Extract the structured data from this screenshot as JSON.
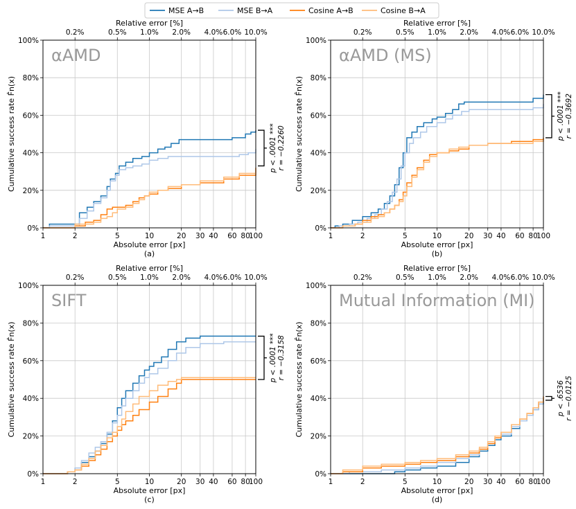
{
  "legend": [
    {
      "label": "MSE A→B",
      "color": "#1f77b4"
    },
    {
      "label": "MSE B→A",
      "color": "#aec7e8"
    },
    {
      "label": "Cosine A→B",
      "color": "#ff7f0e"
    },
    {
      "label": "Cosine B→A",
      "color": "#ffbb78"
    }
  ],
  "chart_data": [
    {
      "type": "line",
      "panel_label": "(a)",
      "title": "αAMD",
      "xlabel": "Absolute error [px]",
      "ylabel": "Cumulative success rate F̂n(x)",
      "top_xlabel": "Relative error [%]",
      "xscale": "log",
      "xlim": [
        1,
        100
      ],
      "ylim": [
        0,
        100
      ],
      "x_ticks": [
        "1",
        "2",
        "5",
        "10",
        "20",
        "30",
        "40",
        "60",
        "80",
        "100"
      ],
      "top_ticks": [
        "0.2%",
        "0.5%",
        "1.0%",
        "2.0%",
        "4.0%",
        "6.0%",
        "10.0%"
      ],
      "y_ticks": [
        "0%",
        "20%",
        "40%",
        "60%",
        "80%",
        "100%"
      ],
      "stat_p": "p < .0001 ***",
      "stat_r": "r = −0.2260",
      "bracket": [
        33,
        52
      ],
      "series": [
        {
          "name": "MSE A→B",
          "x": [
            1,
            1.15,
            1.9,
            2.2,
            2.6,
            3,
            3.5,
            4,
            4.3,
            4.8,
            5.2,
            6,
            7,
            8.5,
            10,
            12,
            14,
            16,
            19,
            25,
            40,
            60,
            80,
            90,
            100
          ],
          "y": [
            0,
            2,
            2,
            8,
            11,
            14,
            17,
            22,
            26,
            29,
            33,
            35,
            37,
            38,
            40,
            42,
            43,
            45,
            47,
            47,
            47,
            48,
            50,
            51,
            52
          ]
        },
        {
          "name": "MSE B→A",
          "x": [
            1,
            1.15,
            1.9,
            2.2,
            2.6,
            3,
            3.5,
            4,
            4.3,
            4.8,
            5.2,
            6,
            7,
            8.5,
            10,
            12,
            15,
            18,
            25,
            40,
            70,
            85,
            100
          ],
          "y": [
            0,
            1,
            1,
            5,
            9,
            13,
            16,
            20,
            25,
            28,
            31,
            32,
            33,
            34,
            36,
            37,
            38,
            38,
            38,
            38,
            39,
            40,
            42
          ]
        },
        {
          "name": "Cosine A→B",
          "x": [
            1,
            1.8,
            2,
            2.5,
            3,
            3.5,
            4,
            4.5,
            5,
            6,
            7,
            8,
            9,
            10,
            12,
            15,
            20,
            30,
            50,
            70,
            100
          ],
          "y": [
            0,
            0,
            1,
            3,
            4,
            7,
            10,
            11,
            11,
            12,
            14,
            16,
            17,
            18,
            20,
            21,
            23,
            24,
            26,
            28,
            32
          ]
        },
        {
          "name": "Cosine B→A",
          "x": [
            1,
            1.8,
            2,
            2.5,
            3,
            3.5,
            4,
            4.5,
            5,
            6,
            7,
            8,
            9,
            10,
            12,
            15,
            20,
            30,
            50,
            70,
            100
          ],
          "y": [
            0,
            0,
            2,
            2,
            3,
            5,
            6,
            8,
            10,
            11,
            13,
            15,
            17,
            19,
            20,
            22,
            23,
            25,
            27,
            29,
            31
          ]
        }
      ]
    },
    {
      "type": "line",
      "panel_label": "(b)",
      "title": "αAMD (MS)",
      "xlabel": "Absolute error [px]",
      "ylabel": "Cumulative success rate F̂n(x)",
      "top_xlabel": "Relative error [%]",
      "xscale": "log",
      "xlim": [
        1,
        100
      ],
      "ylim": [
        0,
        100
      ],
      "x_ticks": [
        "1",
        "2",
        "5",
        "10",
        "20",
        "30",
        "40",
        "60",
        "80",
        "100"
      ],
      "top_ticks": [
        "0.2%",
        "0.5%",
        "1.0%",
        "2.0%",
        "4.0%",
        "6.0%",
        "10.0%"
      ],
      "y_ticks": [
        "0%",
        "20%",
        "40%",
        "60%",
        "80%",
        "100%"
      ],
      "stat_p": "p < .0001 ***",
      "stat_r": "r = −0.3692",
      "bracket": [
        48,
        71
      ],
      "series": [
        {
          "name": "MSE A→B",
          "x": [
            1,
            1.1,
            1.3,
            1.6,
            2,
            2.4,
            2.8,
            3.2,
            3.6,
            4,
            4.4,
            4.8,
            5.2,
            5.8,
            6.5,
            7.5,
            9,
            10,
            12,
            14,
            16,
            18,
            25,
            40,
            80,
            100
          ],
          "y": [
            0,
            1,
            2,
            4,
            6,
            8,
            10,
            13,
            17,
            23,
            32,
            40,
            48,
            51,
            54,
            56,
            58,
            59,
            61,
            63,
            66,
            67,
            67,
            67,
            69,
            71
          ]
        },
        {
          "name": "MSE B→A",
          "x": [
            1,
            1.2,
            1.5,
            1.8,
            2.2,
            2.6,
            3,
            3.4,
            3.8,
            4.2,
            4.6,
            5,
            5.5,
            6,
            7,
            8,
            10,
            12,
            14,
            17,
            20,
            40,
            80,
            100
          ],
          "y": [
            0,
            1,
            2,
            3,
            5,
            7,
            10,
            14,
            19,
            26,
            33,
            40,
            45,
            48,
            51,
            54,
            56,
            58,
            60,
            62,
            63,
            63,
            64,
            66
          ]
        },
        {
          "name": "Cosine A→B",
          "x": [
            1,
            1.3,
            1.7,
            2,
            2.4,
            2.8,
            3.2,
            3.6,
            4,
            4.4,
            4.8,
            5.2,
            5.8,
            6.5,
            7.5,
            8.5,
            10,
            13,
            16,
            20,
            30,
            50,
            80,
            100
          ],
          "y": [
            0,
            1,
            2,
            4,
            6,
            7,
            8,
            10,
            12,
            15,
            19,
            24,
            28,
            32,
            36,
            39,
            40,
            41,
            42,
            44,
            45,
            46,
            47,
            48
          ]
        },
        {
          "name": "Cosine B→A",
          "x": [
            1,
            1.3,
            1.7,
            2,
            2.4,
            2.8,
            3.2,
            3.6,
            4,
            4.4,
            4.8,
            5.2,
            5.8,
            6.5,
            7.5,
            8.5,
            10,
            13,
            16,
            20,
            30,
            50,
            80,
            100
          ],
          "y": [
            0,
            1,
            2,
            3,
            5,
            6,
            8,
            10,
            12,
            14,
            17,
            22,
            27,
            31,
            35,
            38,
            40,
            42,
            43,
            44,
            45,
            45,
            46,
            47
          ]
        }
      ]
    },
    {
      "type": "line",
      "panel_label": "(c)",
      "title": "SIFT",
      "xlabel": "Absolute error [px]",
      "ylabel": "Cumulative success rate F̂n(x)",
      "top_xlabel": "Relative error [%]",
      "xscale": "log",
      "xlim": [
        1,
        100
      ],
      "ylim": [
        0,
        100
      ],
      "x_ticks": [
        "1",
        "2",
        "5",
        "10",
        "20",
        "30",
        "40",
        "60",
        "80",
        "100"
      ],
      "top_ticks": [
        "0.2%",
        "0.5%",
        "1.0%",
        "2.0%",
        "4.0%",
        "6.0%",
        "10.0%"
      ],
      "y_ticks": [
        "0%",
        "20%",
        "40%",
        "60%",
        "80%",
        "100%"
      ],
      "stat_p": "p < .0001 ***",
      "stat_r": "r = −0.3158",
      "bracket": [
        50,
        73
      ],
      "series": [
        {
          "name": "MSE A→B",
          "x": [
            1,
            1.7,
            2,
            2.3,
            2.7,
            3.1,
            3.5,
            4,
            4.5,
            5,
            5.5,
            6,
            7,
            8,
            9,
            10,
            11,
            13,
            15,
            18,
            22,
            30,
            50,
            100
          ],
          "y": [
            0,
            1,
            3,
            6,
            9,
            12,
            16,
            21,
            28,
            35,
            40,
            44,
            48,
            52,
            55,
            57,
            59,
            62,
            66,
            70,
            72,
            73,
            73,
            73
          ]
        },
        {
          "name": "MSE B→A",
          "x": [
            1,
            1.7,
            2,
            2.3,
            2.7,
            3.1,
            3.5,
            4,
            4.5,
            5,
            5.5,
            6,
            7,
            8,
            9,
            10,
            12,
            15,
            18,
            22,
            30,
            50,
            100
          ],
          "y": [
            0,
            1,
            3,
            7,
            11,
            14,
            17,
            22,
            27,
            31,
            36,
            40,
            44,
            48,
            51,
            53,
            56,
            60,
            64,
            67,
            69,
            70,
            70
          ]
        },
        {
          "name": "Cosine A→B",
          "x": [
            1,
            1.7,
            2,
            2.3,
            2.7,
            3.1,
            3.5,
            4,
            4.5,
            5,
            5.5,
            6,
            7,
            8,
            10,
            12,
            15,
            18,
            20,
            30,
            50,
            100
          ],
          "y": [
            0,
            1,
            2,
            4,
            7,
            10,
            13,
            17,
            20,
            23,
            26,
            28,
            31,
            34,
            38,
            41,
            45,
            48,
            50,
            50,
            50,
            50
          ]
        },
        {
          "name": "Cosine B→A",
          "x": [
            1,
            1.7,
            2,
            2.3,
            2.7,
            3.1,
            3.5,
            4,
            4.5,
            5,
            5.5,
            6,
            7,
            8,
            10,
            12,
            15,
            18,
            20,
            30,
            50,
            100
          ],
          "y": [
            0,
            1,
            2,
            5,
            8,
            12,
            15,
            19,
            22,
            25,
            29,
            33,
            37,
            41,
            44,
            47,
            49,
            50,
            51,
            51,
            51,
            51
          ]
        }
      ]
    },
    {
      "type": "line",
      "panel_label": "(d)",
      "title": "Mutual Information (MI)",
      "xlabel": "Absolute error [px]",
      "ylabel": "Cumulative success rate F̂n(x)",
      "top_xlabel": "Relative error [%]",
      "xscale": "log",
      "xlim": [
        1,
        100
      ],
      "ylim": [
        0,
        100
      ],
      "x_ticks": [
        "1",
        "2",
        "5",
        "10",
        "20",
        "30",
        "40",
        "60",
        "80",
        "100"
      ],
      "top_ticks": [
        "0.2%",
        "0.5%",
        "1.0%",
        "2.0%",
        "4.0%",
        "6.0%",
        "10.0%"
      ],
      "y_ticks": [
        "0%",
        "20%",
        "40%",
        "60%",
        "80%",
        "100%"
      ],
      "stat_p": "p < .6536",
      "stat_r": "r = −0.0125",
      "bracket": [
        39,
        41
      ],
      "series": [
        {
          "name": "MSE A→B",
          "x": [
            1,
            2,
            3,
            4,
            5,
            7,
            10,
            15,
            20,
            25,
            30,
            35,
            40,
            50,
            60,
            70,
            80,
            90,
            100
          ],
          "y": [
            0,
            0,
            0,
            1,
            2,
            3,
            4,
            6,
            9,
            12,
            15,
            18,
            20,
            24,
            28,
            31,
            34,
            37,
            40
          ]
        },
        {
          "name": "MSE B→A",
          "x": [
            1,
            1.5,
            2,
            3,
            5,
            7,
            10,
            15,
            20,
            25,
            30,
            35,
            40,
            50,
            60,
            70,
            80,
            90,
            100
          ],
          "y": [
            0,
            1,
            1,
            2,
            3,
            4,
            6,
            8,
            10,
            13,
            16,
            19,
            21,
            25,
            28,
            31,
            34,
            37,
            40
          ]
        },
        {
          "name": "Cosine A→B",
          "x": [
            1,
            1.3,
            2,
            3,
            5,
            7,
            10,
            15,
            20,
            25,
            30,
            35,
            40,
            50,
            60,
            70,
            80,
            90,
            100
          ],
          "y": [
            0,
            1,
            3,
            4,
            5,
            6,
            7,
            9,
            11,
            13,
            16,
            19,
            22,
            26,
            29,
            32,
            35,
            38,
            41
          ]
        },
        {
          "name": "Cosine B→A",
          "x": [
            1,
            1.3,
            2,
            3,
            5,
            7,
            10,
            15,
            20,
            25,
            30,
            35,
            40,
            50,
            60,
            70,
            80,
            90,
            100
          ],
          "y": [
            0,
            2,
            4,
            5,
            6,
            7,
            8,
            10,
            12,
            14,
            17,
            20,
            22,
            26,
            29,
            32,
            35,
            38,
            40
          ]
        }
      ]
    }
  ]
}
